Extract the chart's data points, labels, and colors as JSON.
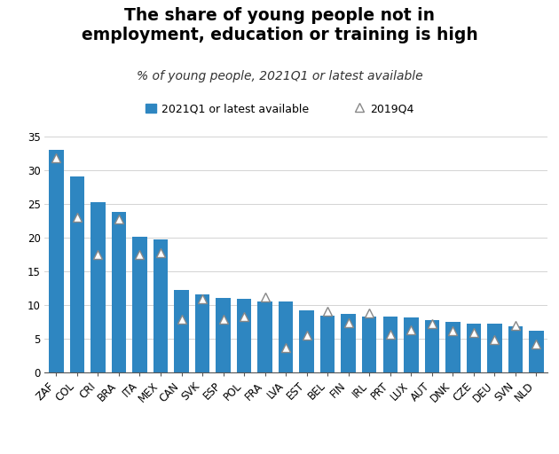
{
  "title": "The share of young people not in\nemployment, education or training is high",
  "subtitle": "% of young people, 2021Q1 or latest available",
  "categories": [
    "ZAF",
    "COL",
    "CRI",
    "BRA",
    "ITA",
    "MEX",
    "CAN",
    "SVK",
    "ESP",
    "POL",
    "FRA",
    "LVA",
    "EST",
    "BEL",
    "FIN",
    "IRL",
    "PRT",
    "LUX",
    "AUT",
    "DNK",
    "CZE",
    "DEU",
    "SVN",
    "NLD"
  ],
  "bar_values": [
    33.0,
    29.0,
    25.2,
    23.8,
    20.1,
    19.7,
    12.2,
    11.5,
    11.0,
    10.9,
    10.5,
    10.5,
    9.2,
    8.4,
    8.6,
    8.2,
    8.2,
    8.1,
    7.8,
    7.5,
    7.2,
    7.2,
    6.8,
    6.2
  ],
  "triangle_values": [
    31.8,
    23.0,
    17.5,
    22.7,
    17.5,
    17.7,
    7.9,
    10.9,
    7.9,
    8.2,
    11.1,
    3.6,
    5.5,
    9.0,
    7.3,
    8.8,
    5.6,
    6.3,
    7.2,
    6.2,
    5.9,
    4.8,
    7.0,
    4.2
  ],
  "bar_color": "#2E86C1",
  "triangle_facecolor": "white",
  "triangle_edgecolor": "#888888",
  "legend_bar_label": "2021Q1 or latest available",
  "legend_tri_label": "2019Q4",
  "ylim": [
    0,
    35
  ],
  "yticks": [
    0,
    5,
    10,
    15,
    20,
    25,
    30,
    35
  ],
  "title_fontsize": 13.5,
  "subtitle_fontsize": 10,
  "tick_fontsize": 8.5,
  "legend_fontsize": 9,
  "background_color": "#ffffff",
  "grid_color": "#cccccc",
  "bar_width": 0.7
}
